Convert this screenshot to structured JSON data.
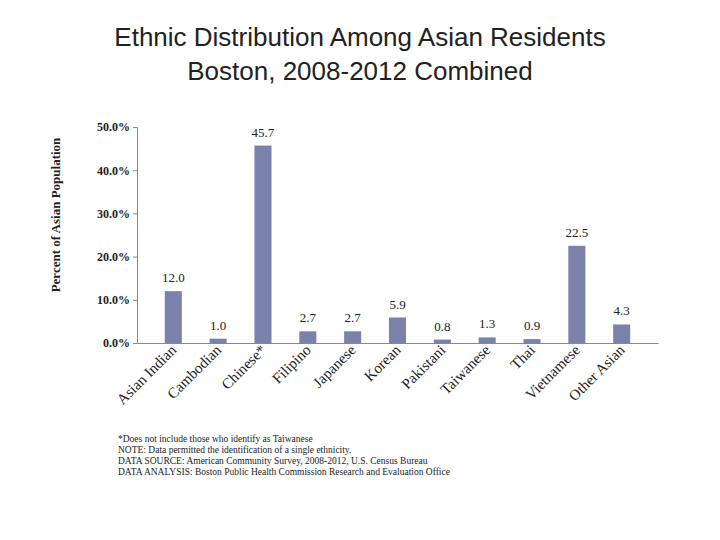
{
  "chart_data": {
    "type": "bar",
    "title": "Ethnic Distribution Among Asian Residents",
    "subtitle": "Boston, 2008-2012 Combined",
    "y_label": "Percent of Asian Population",
    "categories": [
      "Asian Indian",
      "Cambodian",
      "Chinese*",
      "Filipino",
      "Japanese",
      "Korean",
      "Pakistani",
      "Taiwanese",
      "Thai",
      "Vietnamese",
      "Other Asian"
    ],
    "values": [
      12.0,
      1.0,
      45.7,
      2.7,
      2.7,
      5.9,
      0.8,
      1.3,
      0.9,
      22.5,
      4.3
    ],
    "value_labels": [
      "12.0",
      "1.0",
      "45.7",
      "2.7",
      "2.7",
      "5.9",
      "0.8",
      "1.3",
      "0.9",
      "22.5",
      "4.3"
    ],
    "color": "#7a82ab",
    "ylim": [
      0,
      50
    ],
    "yticks": [
      {
        "value": 0,
        "label": "0.0%"
      },
      {
        "value": 10,
        "label": "10.0%"
      },
      {
        "value": 20,
        "label": "20.0%"
      },
      {
        "value": 30,
        "label": "30.0%"
      },
      {
        "value": 40,
        "label": "40.0%"
      },
      {
        "value": 50,
        "label": "50.0%"
      }
    ],
    "grid": false,
    "data_labels": true,
    "annotations": [
      "*Does not include those who identify as Taiwanese",
      "NOTE: Data permitted the identification of a single ethnicity.",
      "DATA SOURCE: American Community Survey, 2008-2012, U.S. Census Bureau",
      "DATA ANALYSIS: Boston Public Health Commission Research and Evaluation Office"
    ]
  }
}
